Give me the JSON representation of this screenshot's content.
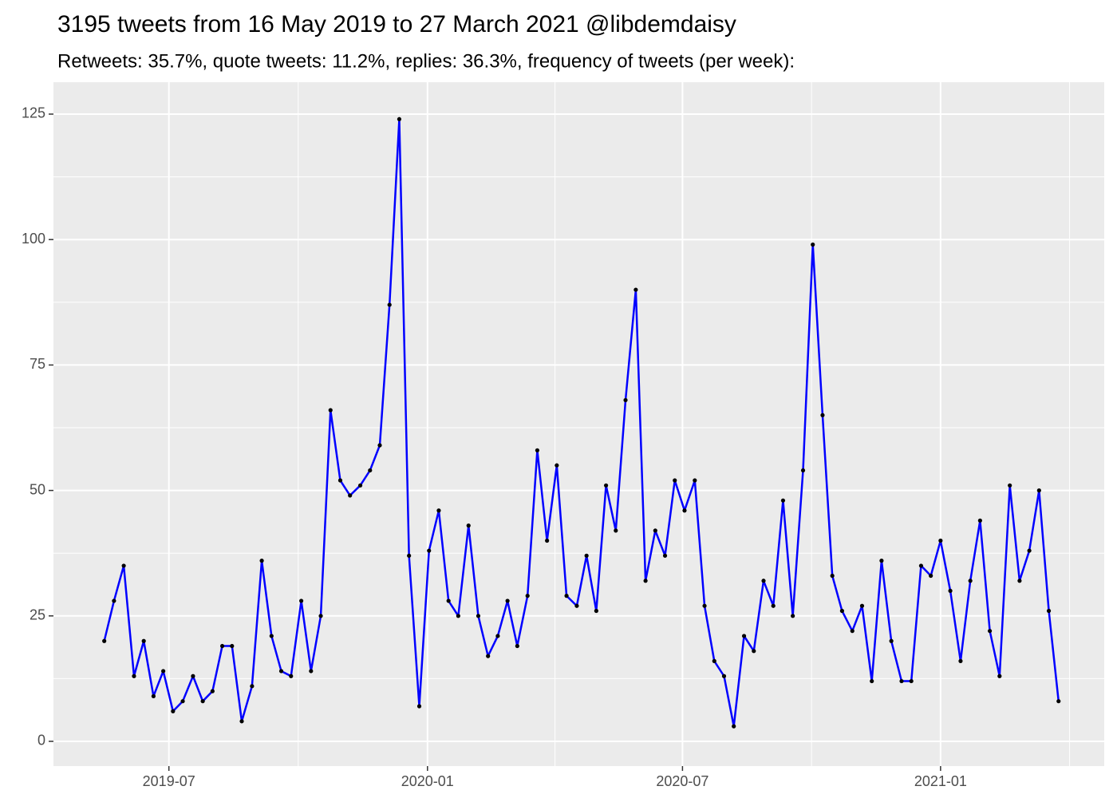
{
  "chart_data": {
    "type": "line",
    "title": "3195 tweets from 16 May 2019 to 27 March 2021 @libdemdaisy",
    "subtitle": "Retweets: 35.7%, quote tweets: 11.2%, replies: 36.3%, frequency of tweets (per week):",
    "x": [
      2019.37,
      2019.389,
      2019.408,
      2019.428,
      2019.447,
      2019.466,
      2019.485,
      2019.504,
      2019.523,
      2019.543,
      2019.562,
      2019.581,
      2019.6,
      2019.619,
      2019.638,
      2019.658,
      2019.677,
      2019.696,
      2019.715,
      2019.734,
      2019.754,
      2019.773,
      2019.792,
      2019.811,
      2019.83,
      2019.849,
      2019.869,
      2019.888,
      2019.907,
      2019.926,
      2019.945,
      2019.964,
      2019.984,
      2020.003,
      2020.022,
      2020.041,
      2020.06,
      2020.08,
      2020.099,
      2020.118,
      2020.137,
      2020.156,
      2020.175,
      2020.195,
      2020.214,
      2020.233,
      2020.252,
      2020.271,
      2020.291,
      2020.31,
      2020.329,
      2020.348,
      2020.367,
      2020.386,
      2020.406,
      2020.425,
      2020.444,
      2020.463,
      2020.482,
      2020.501,
      2020.521,
      2020.54,
      2020.559,
      2020.578,
      2020.597,
      2020.617,
      2020.636,
      2020.655,
      2020.674,
      2020.693,
      2020.712,
      2020.732,
      2020.751,
      2020.77,
      2020.789,
      2020.808,
      2020.828,
      2020.847,
      2020.866,
      2020.885,
      2020.904,
      2020.924,
      2020.943,
      2020.962,
      2020.981,
      2021.0,
      2021.019,
      2021.039,
      2021.058,
      2021.077,
      2021.096,
      2021.115,
      2021.135,
      2021.154,
      2021.173,
      2021.192,
      2021.211,
      2021.23
    ],
    "series": [
      {
        "color": "#0000ff",
        "point_color": "#000000",
        "values": [
          20,
          28,
          35,
          13,
          20,
          9,
          14,
          6,
          8,
          13,
          8,
          10,
          19,
          19,
          4,
          11,
          36,
          21,
          14,
          13,
          28,
          14,
          25,
          66,
          52,
          49,
          51,
          54,
          59,
          87,
          124,
          37,
          7,
          38,
          46,
          28,
          25,
          43,
          25,
          17,
          21,
          28,
          19,
          29,
          58,
          40,
          55,
          29,
          27,
          37,
          26,
          51,
          42,
          68,
          90,
          32,
          42,
          37,
          52,
          46,
          52,
          27,
          16,
          13,
          3,
          21,
          18,
          32,
          27,
          48,
          25,
          54,
          99,
          65,
          33,
          26,
          22,
          27,
          12,
          36,
          20,
          12,
          12,
          35,
          33,
          40,
          30,
          16,
          32,
          44,
          22,
          13,
          51,
          32,
          38,
          50,
          26,
          8
        ]
      }
    ],
    "xlim": [
      2019.271,
      2021.319
    ],
    "xticks": [
      {
        "value": 2019.496,
        "label": "2019-07"
      },
      {
        "value": 2020.0,
        "label": "2020-01"
      },
      {
        "value": 2020.497,
        "label": "2020-07"
      },
      {
        "value": 2021.0,
        "label": "2021-01"
      }
    ],
    "ylim": [
      -4.93,
      131.36
    ],
    "yticks": [
      0,
      25,
      50,
      75,
      100,
      125
    ],
    "grid": true
  }
}
